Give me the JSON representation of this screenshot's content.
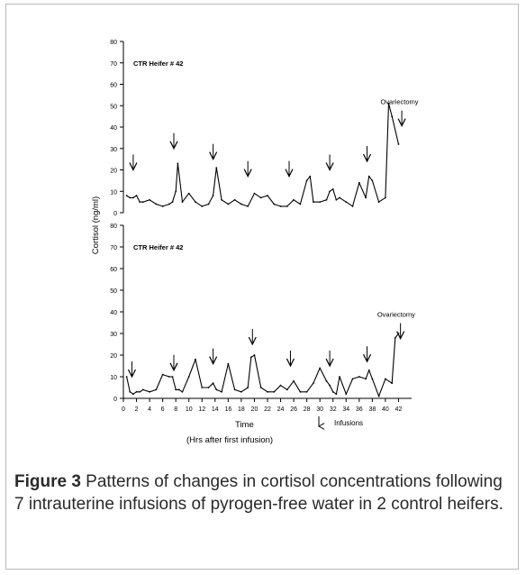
{
  "caption": {
    "label": "Figure 3",
    "text": " Patterns of changes in cortisol concentrations following 7 intrauterine infusions of pyrogen-free water in 2 control heifers."
  },
  "chart_data": {
    "type": "line",
    "ylabel": "Cortisol (ng/ml)",
    "xlabel": "Time",
    "xlabel_sub": "(Hrs after first infusion)",
    "legend": "Infusions",
    "x_ticks": [
      0,
      2,
      4,
      6,
      8,
      10,
      12,
      14,
      16,
      18,
      20,
      22,
      24,
      26,
      28,
      30,
      32,
      34,
      36,
      38,
      40,
      42
    ],
    "xlim": [
      0,
      44
    ],
    "panels": [
      {
        "title": "CTR Heifer # 42",
        "ylim": [
          0,
          80
        ],
        "y_ticks": [
          0,
          10,
          20,
          30,
          40,
          50,
          60,
          70,
          80
        ],
        "annotation": "Ovariectomy",
        "annotation_x": 42,
        "annotation_y": 52,
        "arrow_x": 42.5,
        "arrow_y": 49,
        "infusions": [
          {
            "x": 1.5,
            "y": 20
          },
          {
            "x": 7.7,
            "y": 30
          },
          {
            "x": 13.7,
            "y": 25
          },
          {
            "x": 19,
            "y": 17
          },
          {
            "x": 25.3,
            "y": 17
          },
          {
            "x": 31.5,
            "y": 20
          },
          {
            "x": 37.2,
            "y": 24
          }
        ],
        "series": {
          "x": [
            0.5,
            1,
            1.5,
            2,
            2.5,
            3,
            4,
            5,
            6,
            7,
            7.5,
            8,
            8.3,
            9,
            10,
            11,
            12,
            13,
            13.7,
            14.2,
            15,
            16,
            17,
            18,
            19,
            20,
            21,
            22,
            23,
            24,
            25,
            26,
            27,
            28,
            28.5,
            29,
            30,
            31,
            31.5,
            32,
            32.5,
            33,
            34,
            35,
            36,
            37,
            37.5,
            38,
            39,
            40,
            40.5,
            41,
            42
          ],
          "y": [
            8,
            7,
            7,
            8,
            5,
            5,
            6,
            4,
            3,
            4,
            5,
            10,
            23,
            5,
            9,
            5,
            3,
            4,
            8,
            21,
            6,
            4,
            6,
            4,
            3,
            9,
            7,
            8,
            4,
            3,
            3,
            6,
            4,
            15,
            17,
            5,
            5,
            6,
            10,
            11,
            6,
            7,
            5,
            3,
            14,
            7,
            17,
            15,
            5,
            7,
            51,
            45,
            32
          ]
        }
      },
      {
        "title": "CTR Heifer # 42",
        "ylim": [
          0,
          80
        ],
        "y_ticks": [
          0,
          10,
          20,
          30,
          40,
          50,
          60,
          70,
          80
        ],
        "annotation": "Ovariectomy",
        "annotation_x": 41.5,
        "annotation_y": 39,
        "arrow_x": 42.3,
        "arrow_y": 36,
        "infusions": [
          {
            "x": 1.3,
            "y": 10
          },
          {
            "x": 7.7,
            "y": 13
          },
          {
            "x": 13.7,
            "y": 16
          },
          {
            "x": 19.7,
            "y": 25
          },
          {
            "x": 25.5,
            "y": 15
          },
          {
            "x": 31.5,
            "y": 15
          },
          {
            "x": 37.2,
            "y": 17
          }
        ],
        "series": {
          "x": [
            0.5,
            1,
            1.5,
            2,
            2.5,
            3,
            4,
            5,
            6,
            7,
            7.5,
            8,
            8.5,
            9,
            10,
            11,
            12,
            13,
            13.7,
            14.2,
            15,
            16,
            17,
            18,
            19,
            19.5,
            20,
            21,
            22,
            23,
            24,
            25,
            26,
            27,
            28,
            29,
            30,
            31,
            31.5,
            32,
            32.5,
            33,
            34,
            35,
            36,
            37,
            37.5,
            38,
            39,
            40,
            41,
            41.5,
            42
          ],
          "y": [
            10,
            3,
            2,
            3,
            3,
            4,
            3,
            4,
            11,
            10,
            10,
            4,
            4,
            3,
            10,
            18,
            5,
            5,
            7,
            4,
            3,
            16,
            4,
            3,
            5,
            19,
            20,
            5,
            3,
            3,
            6,
            4,
            8,
            3,
            3,
            7,
            14,
            8,
            6,
            3,
            2,
            10,
            2,
            9,
            10,
            9,
            13,
            9,
            1,
            9,
            7,
            28,
            30
          ]
        }
      }
    ]
  }
}
